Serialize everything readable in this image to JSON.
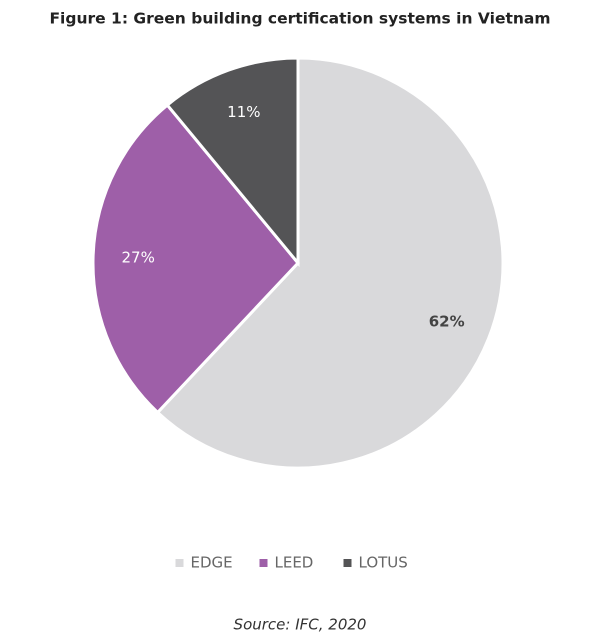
{
  "chart_data": {
    "type": "pie",
    "title": "Figure 1: Green building certification systems in Vietnam",
    "categories": [
      "EDGE",
      "LEED",
      "LOTUS"
    ],
    "values": [
      62,
      27,
      11
    ],
    "value_labels": [
      "62%",
      "27%",
      "11%"
    ],
    "colors": [
      "#d9d9db",
      "#9e5fa8",
      "#545456"
    ],
    "legend": "bottom",
    "source": "Source: IFC, 2020"
  }
}
